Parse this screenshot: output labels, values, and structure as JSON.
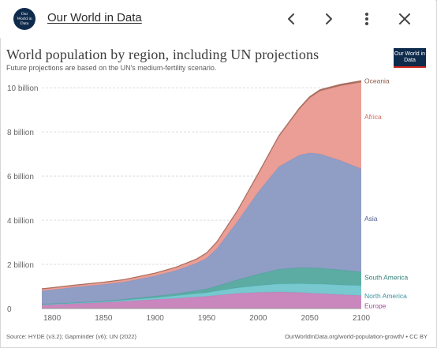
{
  "header": {
    "site_name": "Our World in Data",
    "favicon_text": "Our World in Data",
    "back_icon": "chevron-left-icon",
    "forward_icon": "chevron-right-icon",
    "menu_icon": "more-vertical-icon",
    "close_icon": "close-icon"
  },
  "logo_text": "Our World in Data",
  "colors": {
    "brand_navy": "#0f2b4c",
    "brand_red": "#ce261e",
    "oceania": "#a2695a",
    "africa": "#e8968c",
    "asia": "#8796c1",
    "south_america": "#4ea59b",
    "north_america": "#6cc3cb",
    "europe": "#c47db8"
  },
  "chart_data": {
    "type": "area",
    "stacked": true,
    "title": "World population by region, including UN projections",
    "subtitle": "Future projections are based on the UN's medium-fertility scenario.",
    "x_ticks": [
      "1800",
      "1850",
      "1900",
      "1950",
      "2000",
      "2050",
      "2100"
    ],
    "y_ticks": [
      "0",
      "2 billion",
      "4 billion",
      "6 billion",
      "8 billion",
      "10 billion"
    ],
    "xlim": [
      1790,
      2100
    ],
    "ylim": [
      0,
      10.4
    ],
    "grid": true,
    "legend": "inline-right",
    "x": [
      1790,
      1800,
      1820,
      1850,
      1870,
      1900,
      1920,
      1940,
      1950,
      1960,
      1980,
      2000,
      2020,
      2040,
      2050,
      2060,
      2080,
      2100
    ],
    "series": [
      {
        "name": "Europe",
        "color": "#c47db8",
        "values": [
          0.17,
          0.19,
          0.22,
          0.28,
          0.33,
          0.41,
          0.46,
          0.53,
          0.55,
          0.6,
          0.69,
          0.73,
          0.75,
          0.73,
          0.7,
          0.68,
          0.63,
          0.59
        ]
      },
      {
        "name": "North America",
        "color": "#6cc3cb",
        "values": [
          0.01,
          0.01,
          0.02,
          0.03,
          0.05,
          0.08,
          0.12,
          0.15,
          0.17,
          0.2,
          0.25,
          0.31,
          0.37,
          0.4,
          0.42,
          0.43,
          0.44,
          0.45
        ]
      },
      {
        "name": "South America",
        "color": "#4ea59b",
        "values": [
          0.02,
          0.02,
          0.02,
          0.03,
          0.04,
          0.07,
          0.09,
          0.13,
          0.17,
          0.22,
          0.36,
          0.52,
          0.66,
          0.72,
          0.73,
          0.72,
          0.68,
          0.62
        ]
      },
      {
        "name": "Asia",
        "color": "#8796c1",
        "values": [
          0.6,
          0.63,
          0.7,
          0.75,
          0.78,
          0.92,
          1.05,
          1.24,
          1.39,
          1.7,
          2.65,
          3.72,
          4.64,
          5.1,
          5.2,
          5.17,
          4.95,
          4.67
        ]
      },
      {
        "name": "Africa",
        "color": "#e8968c",
        "values": [
          0.09,
          0.09,
          0.09,
          0.1,
          0.11,
          0.12,
          0.14,
          0.18,
          0.23,
          0.29,
          0.48,
          0.81,
          1.36,
          2.08,
          2.49,
          2.85,
          3.39,
          3.92
        ]
      },
      {
        "name": "Oceania",
        "color": "#a2695a",
        "values": [
          0.002,
          0.002,
          0.002,
          0.002,
          0.003,
          0.006,
          0.008,
          0.011,
          0.013,
          0.016,
          0.023,
          0.031,
          0.045,
          0.055,
          0.058,
          0.061,
          0.066,
          0.069
        ]
      }
    ]
  },
  "footer": {
    "source": "Source: HYDE (v3.2); Gapminder (v6); UN (2022)",
    "link": "OurWorldInData.org/world-population-growth/ • CC BY"
  }
}
